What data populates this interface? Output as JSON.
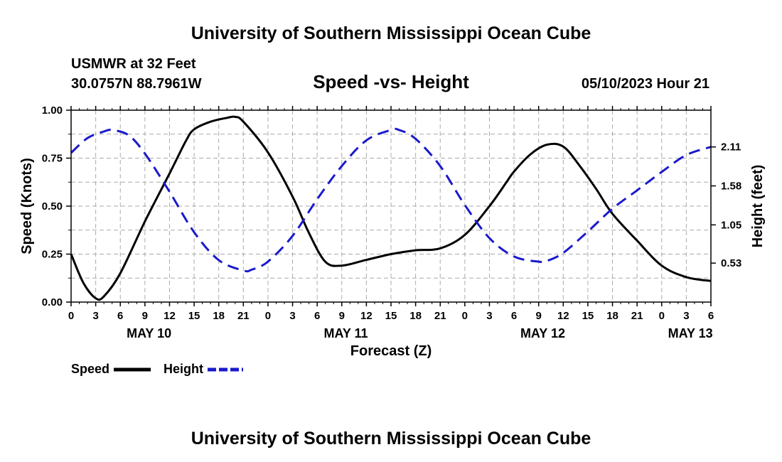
{
  "header": {
    "title": "University of Southern Mississippi Ocean Cube",
    "station": "USMWR at 32 Feet",
    "coords": "30.0757N  88.7961W",
    "subtitle": "Speed -vs- Height",
    "timestamp": "05/10/2023 Hour 21"
  },
  "footer": {
    "title": "University of Southern Mississippi Ocean Cube"
  },
  "colors": {
    "speed": "#000000",
    "height": "#1a1acc",
    "grid": "#aaaaaa"
  },
  "chart_data": {
    "type": "line",
    "title": "Speed -vs- Height",
    "xlabel": "Forecast (Z)",
    "ylabel": "Speed (Knots)",
    "y2label": "Height (feet)",
    "xlim": [
      0,
      78
    ],
    "ylim": [
      0,
      1
    ],
    "y2lim": [
      0.0,
      2.61
    ],
    "x_ticks": [
      0,
      3,
      6,
      9,
      12,
      15,
      18,
      21,
      24,
      27,
      30,
      33,
      36,
      39,
      42,
      45,
      48,
      51,
      54,
      57,
      60,
      63,
      66,
      69,
      72,
      75,
      78
    ],
    "x_tick_labels": [
      "0",
      "3",
      "6",
      "9",
      "12",
      "15",
      "18",
      "21",
      "0",
      "3",
      "6",
      "9",
      "12",
      "15",
      "18",
      "21",
      "0",
      "3",
      "6",
      "9",
      "12",
      "15",
      "18",
      "21",
      "0",
      "3",
      "6"
    ],
    "y_ticks": [
      0,
      0.25,
      0.5,
      0.75,
      1.0
    ],
    "y_tick_labels": [
      "0.00",
      "0.25",
      "0.50",
      "0.75",
      "1.00"
    ],
    "y2_ticks": [
      0.53,
      1.05,
      1.58,
      2.11
    ],
    "y2_tick_labels": [
      "0.53",
      "1.05",
      "1.58",
      "2.11"
    ],
    "day_labels": [
      {
        "x": 9.5,
        "label": "MAY 10"
      },
      {
        "x": 33.5,
        "label": "MAY 11"
      },
      {
        "x": 57.5,
        "label": "MAY 12"
      },
      {
        "x": 75.5,
        "label": "MAY 13"
      }
    ],
    "series": [
      {
        "name": "Speed",
        "axis": "left",
        "style": "solid",
        "x": [
          0,
          1.5,
          3,
          4,
          6,
          9,
          12,
          14,
          15,
          17,
          19,
          20,
          21,
          24,
          27,
          29,
          31,
          33,
          36,
          39,
          42,
          45,
          48,
          51,
          53,
          54,
          56,
          58,
          60,
          62,
          64,
          66,
          69,
          72,
          75,
          78
        ],
        "values": [
          0.25,
          0.1,
          0.02,
          0.03,
          0.15,
          0.42,
          0.67,
          0.84,
          0.9,
          0.94,
          0.96,
          0.965,
          0.94,
          0.78,
          0.55,
          0.36,
          0.21,
          0.19,
          0.22,
          0.25,
          0.27,
          0.28,
          0.35,
          0.5,
          0.62,
          0.68,
          0.77,
          0.82,
          0.81,
          0.71,
          0.59,
          0.46,
          0.32,
          0.19,
          0.13,
          0.11
        ]
      },
      {
        "name": "Height",
        "axis": "right",
        "style": "dashed",
        "x": [
          0,
          2,
          4,
          5,
          7,
          9,
          12,
          15,
          18,
          21,
          22,
          24,
          27,
          30,
          33,
          36,
          39,
          40,
          42,
          45,
          48,
          51,
          54,
          57,
          58,
          60,
          63,
          66,
          69,
          72,
          75,
          78
        ],
        "values": [
          2.03,
          2.23,
          2.32,
          2.34,
          2.27,
          2.02,
          1.5,
          0.95,
          0.57,
          0.43,
          0.44,
          0.55,
          0.9,
          1.4,
          1.85,
          2.2,
          2.34,
          2.34,
          2.22,
          1.85,
          1.32,
          0.87,
          0.62,
          0.55,
          0.56,
          0.67,
          0.96,
          1.27,
          1.52,
          1.77,
          2.0,
          2.11
        ]
      }
    ],
    "legend": [
      {
        "label": "Speed",
        "style": "solid"
      },
      {
        "label": "Height",
        "style": "dashed"
      }
    ],
    "legend_placement": "bottom-left"
  }
}
